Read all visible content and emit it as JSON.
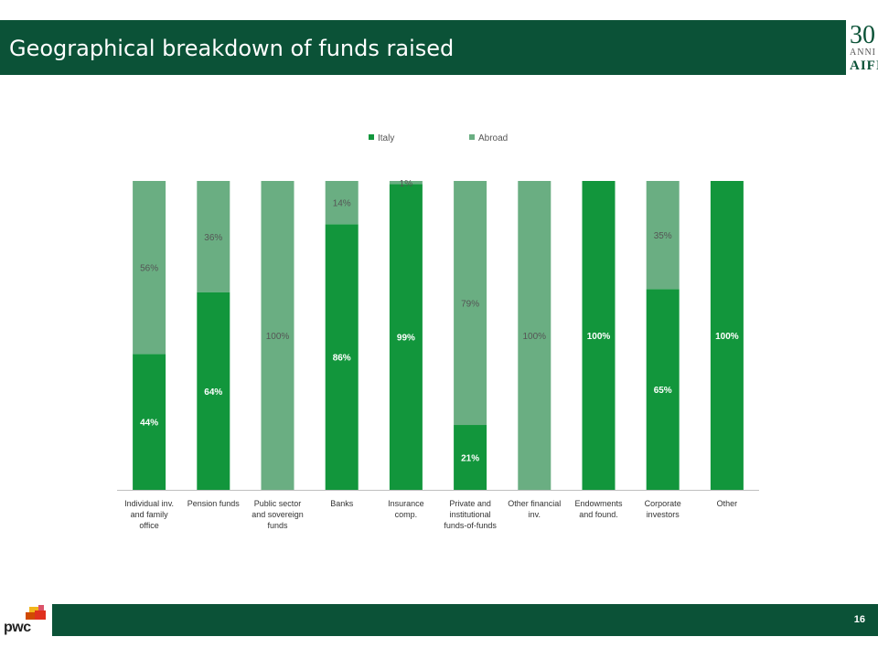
{
  "header": {
    "title": "Geographical breakdown of funds raised"
  },
  "logo": {
    "number": "30",
    "anni": "ANNI",
    "name": "AIFI"
  },
  "footer": {
    "page_number": "16",
    "brand": "pwc"
  },
  "colors": {
    "italy": "#12963c",
    "abroad": "#6aae82",
    "header": "#0b5237"
  },
  "chart_data": {
    "type": "bar",
    "stacked": true,
    "categories": [
      [
        "Individual inv.",
        "and family",
        "office"
      ],
      [
        "Pension funds"
      ],
      [
        "Public sector",
        "and sovereign",
        "funds"
      ],
      [
        "Banks"
      ],
      [
        "Insurance",
        "comp."
      ],
      [
        "Private and",
        "institutional",
        "funds-of-funds"
      ],
      [
        "Other financial",
        "inv."
      ],
      [
        "Endowments",
        "and found."
      ],
      [
        "Corporate",
        "investors"
      ],
      [
        "Other"
      ]
    ],
    "series": [
      {
        "name": "Italy",
        "values": [
          44,
          64,
          0,
          86,
          99,
          21,
          0,
          100,
          65,
          100
        ],
        "labels": [
          "44%",
          "64%",
          "",
          "86%",
          "99%",
          "21%",
          "",
          "100%",
          "65%",
          "100%"
        ]
      },
      {
        "name": "Abroad",
        "values": [
          56,
          36,
          100,
          14,
          1,
          79,
          100,
          0,
          35,
          0
        ],
        "labels": [
          "56%",
          "36%",
          "100%",
          "14%",
          "1%",
          "79%",
          "100%",
          "",
          "35%",
          ""
        ]
      }
    ],
    "ylim": [
      0,
      100
    ],
    "legend": "top-center",
    "grid": false
  }
}
